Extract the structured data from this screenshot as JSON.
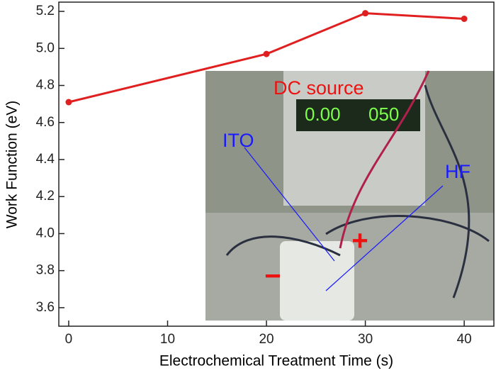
{
  "chart_data": {
    "type": "line",
    "x_label": "Electrochemical Treatment Time (s)",
    "y_label": "Work Function (eV)",
    "x": [
      0,
      20,
      30,
      40
    ],
    "series": [
      {
        "name": "Work function",
        "color": "#e02020",
        "values": [
          4.71,
          4.97,
          5.19,
          5.16
        ]
      }
    ],
    "xlim": [
      -1,
      43
    ],
    "xticks": [
      0,
      10,
      20,
      30,
      40
    ],
    "ylim": [
      3.5,
      5.25
    ],
    "yticks": [
      {
        "value": 3.6,
        "label": "3.6"
      },
      {
        "value": 3.8,
        "label": "3.8"
      },
      {
        "value": 4.0,
        "label": "4.0"
      },
      {
        "value": 4.2,
        "label": "4.2"
      },
      {
        "value": 4.4,
        "label": "4.4"
      },
      {
        "value": 4.6,
        "label": "4.6"
      },
      {
        "value": 4.8,
        "label": "4.8"
      },
      {
        "value": 5.0,
        "label": "5.0"
      },
      {
        "value": 5.2,
        "label": "5.2"
      }
    ],
    "inset_annotations": {
      "source": "DC source",
      "ito": "ITO",
      "hf": "HF",
      "plus": "+",
      "minus": "−",
      "display_left": "0.00",
      "display_right": "050"
    }
  }
}
